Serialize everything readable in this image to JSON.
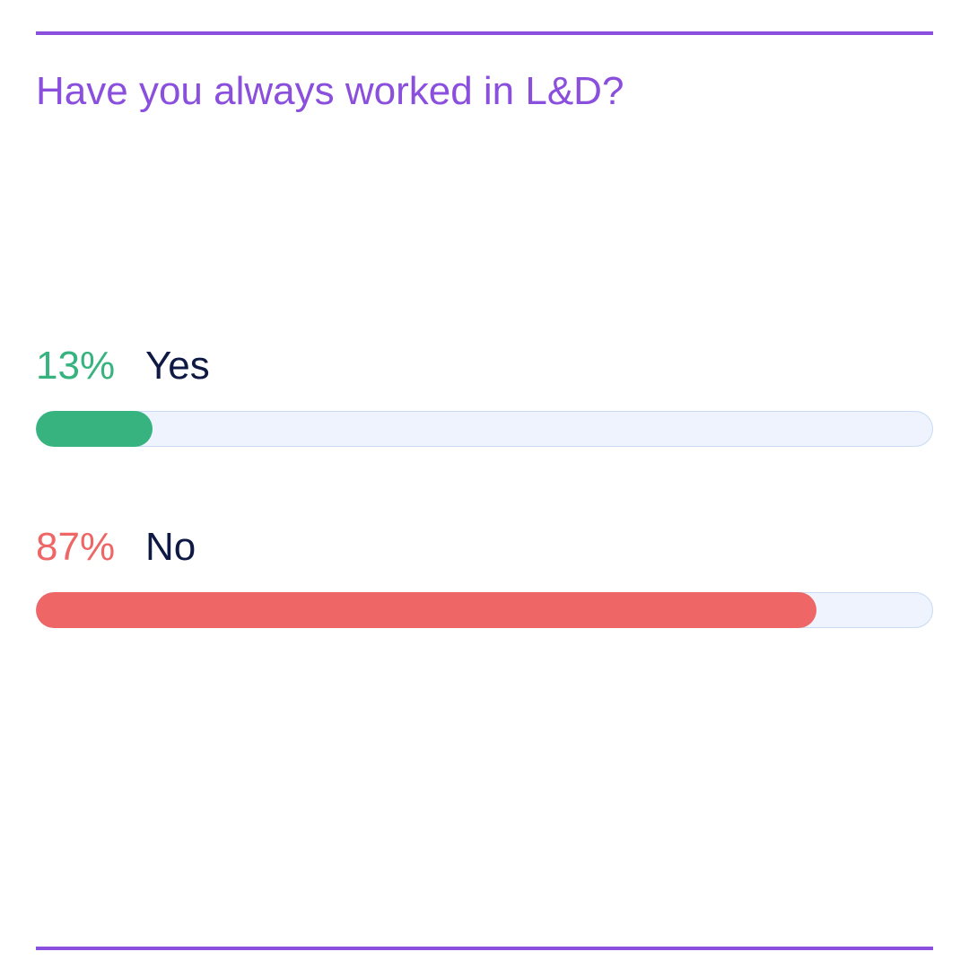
{
  "chart_data": {
    "type": "bar",
    "title": "Have you always worked in L&D?",
    "orientation": "horizontal",
    "max": 100,
    "categories": [
      "Yes",
      "No"
    ],
    "values": [
      13,
      87
    ],
    "value_labels": [
      "13%",
      "87%"
    ],
    "colors": [
      "#36b37e",
      "#ee6666"
    ],
    "track_color": "#eef3fd",
    "grid": false,
    "legend": "none"
  },
  "theme": {
    "accent": "#8a4fdc",
    "label_color": "#0f1a44"
  }
}
